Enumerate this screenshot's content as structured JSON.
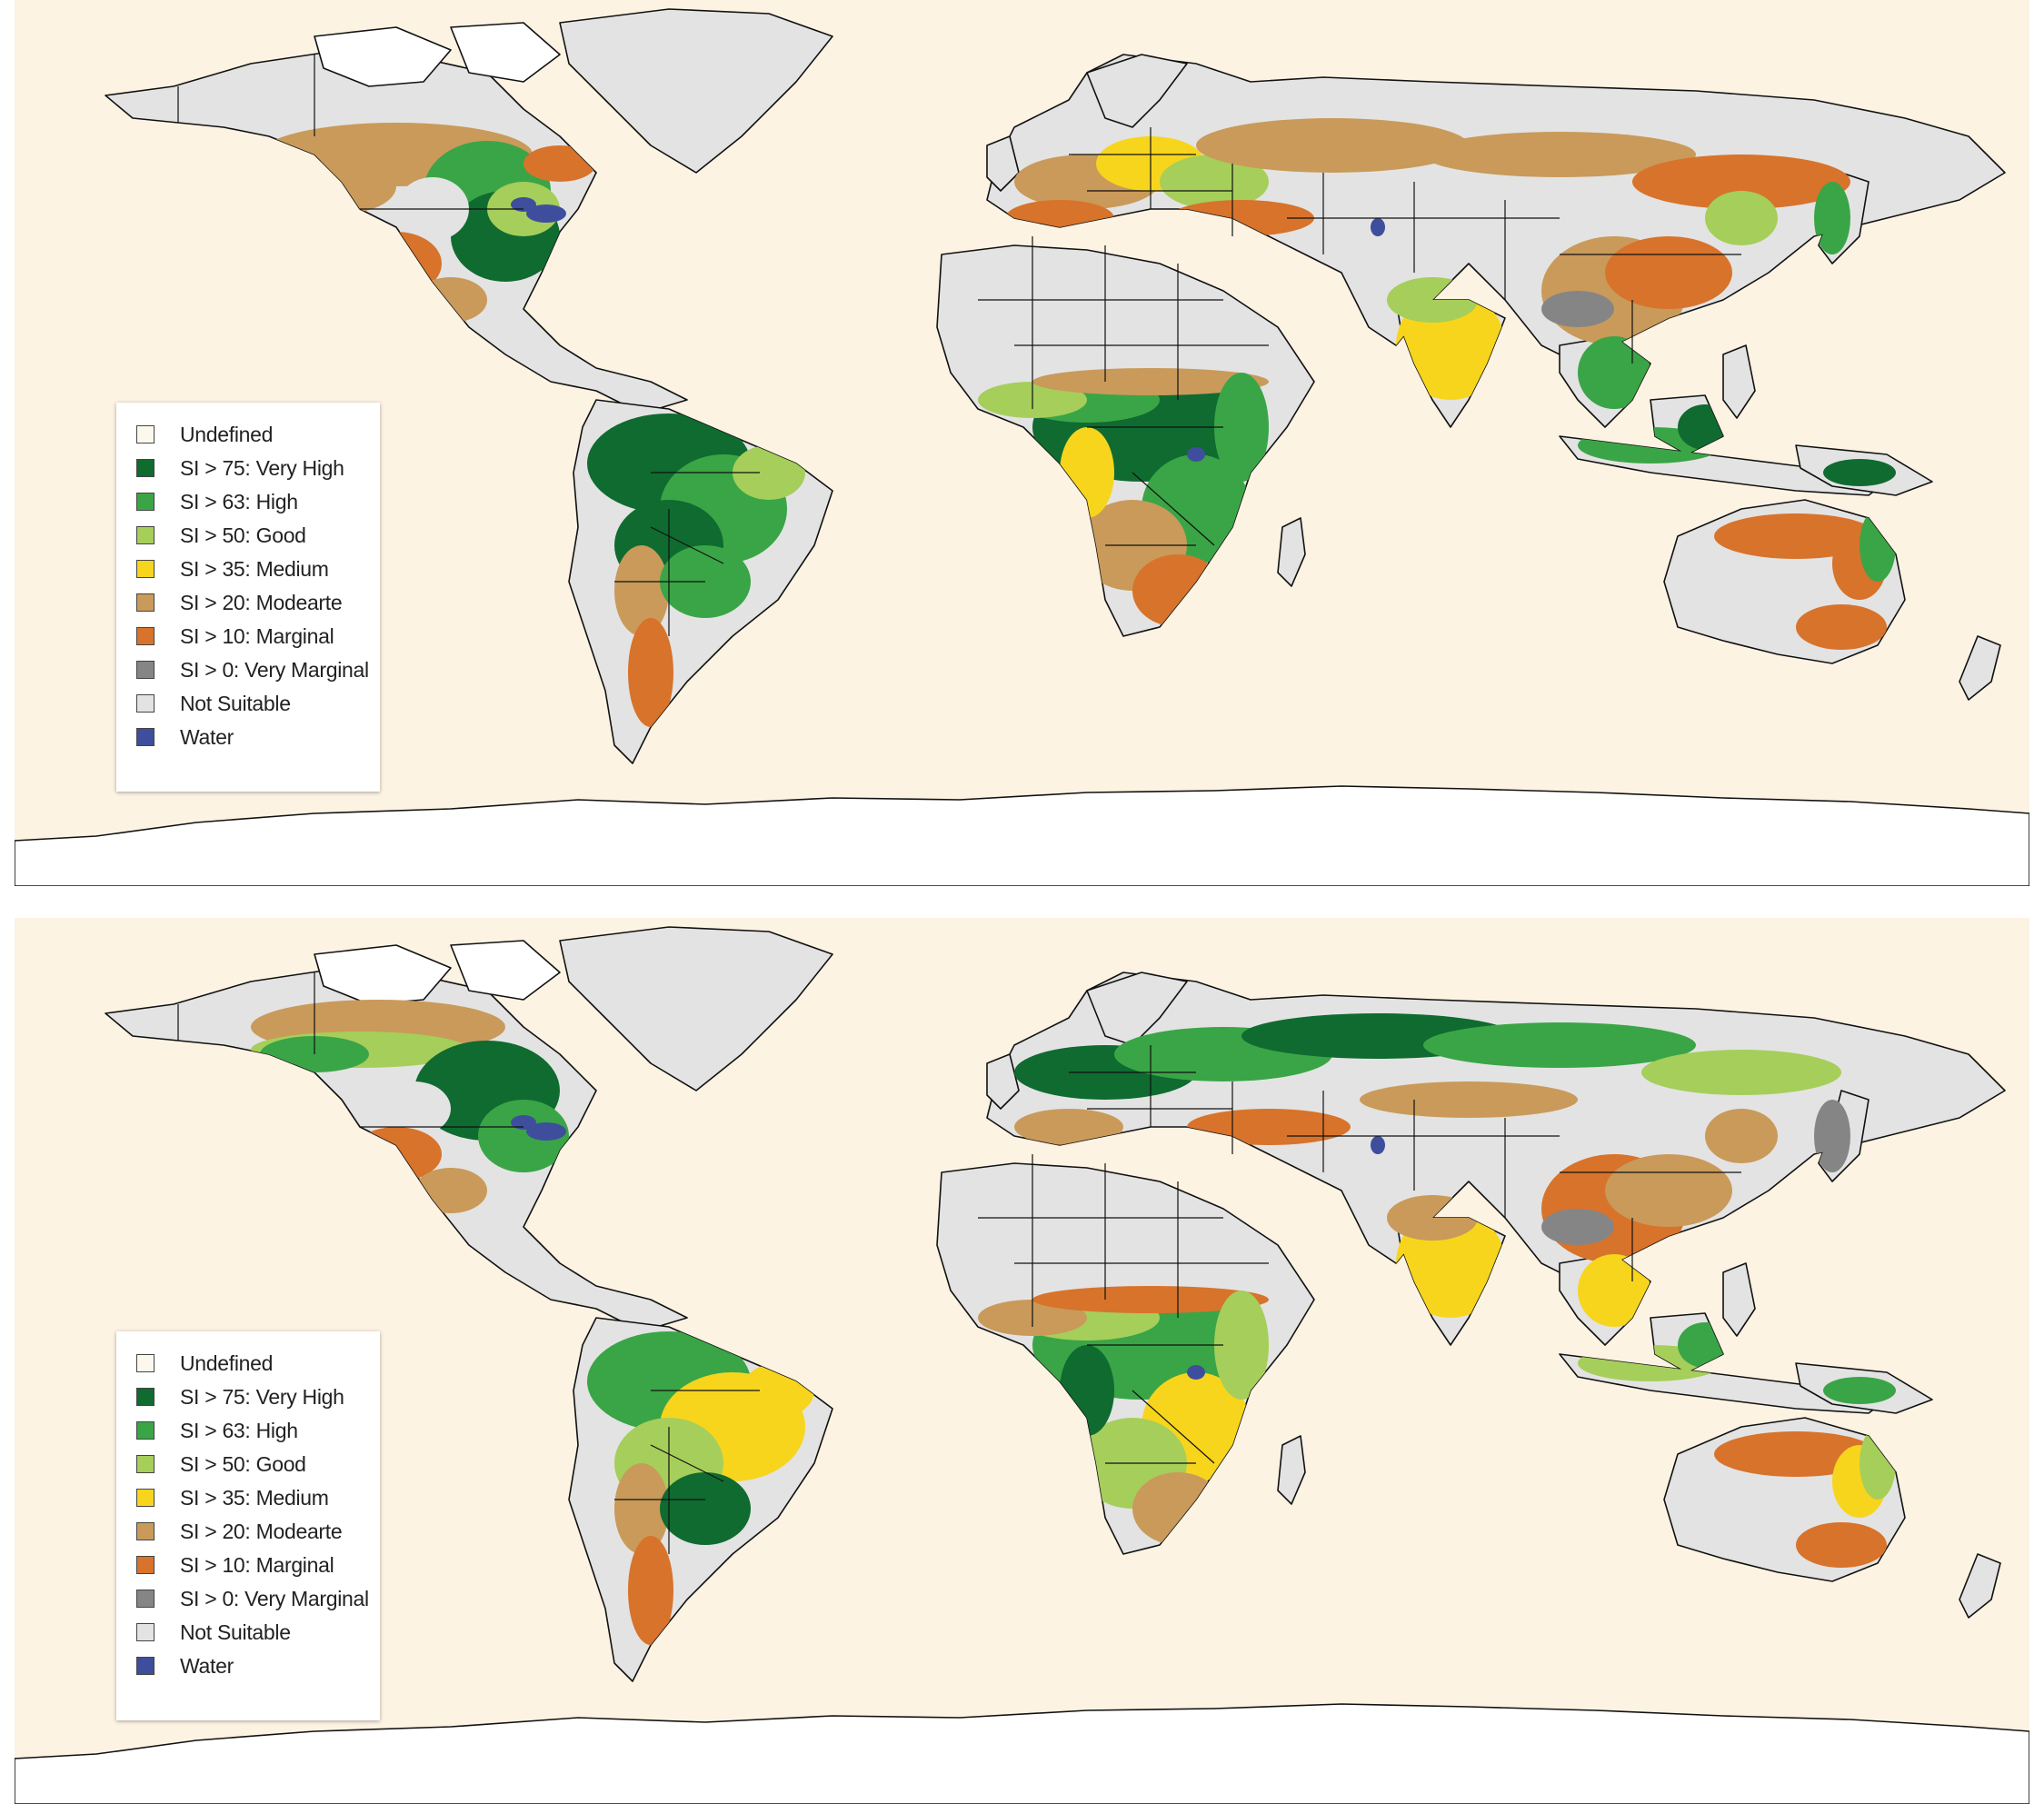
{
  "legend": {
    "items": [
      {
        "label": "Undefined",
        "color": "#fdf8ee"
      },
      {
        "label": "SI > 75: Very High",
        "color": "#0f6b30"
      },
      {
        "label": "SI > 63: High",
        "color": "#3aa546"
      },
      {
        "label": "SI > 50: Good",
        "color": "#a6ce5a"
      },
      {
        "label": "SI > 35: Medium",
        "color": "#f7d51d"
      },
      {
        "label": "SI > 20: Modearte",
        "color": "#c99a5a"
      },
      {
        "label": "SI > 10: Marginal",
        "color": "#d8732b"
      },
      {
        "label": "SI > 0: Very Marginal",
        "color": "#858585"
      },
      {
        "label": "Not Suitable",
        "color": "#e3e3e3"
      },
      {
        "label": "Water",
        "color": "#3f4e9c"
      }
    ]
  },
  "colors": {
    "ocean": "#fdf3e3",
    "undefined_land": "#ffffff",
    "not_suitable": "#e3e3e3",
    "border": "#111111"
  },
  "maps": [
    {
      "id": "map-top"
    },
    {
      "id": "map-bottom"
    }
  ]
}
